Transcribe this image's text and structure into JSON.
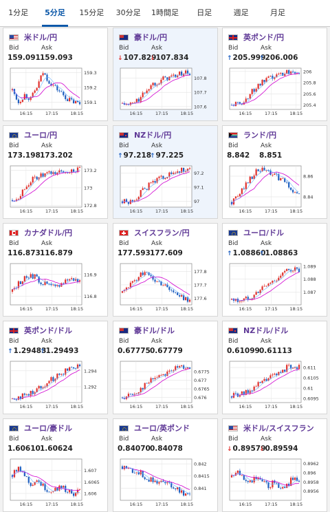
{
  "tabs": [
    "1分足",
    "5分足",
    "15分足",
    "30分足",
    "1時間足",
    "日足",
    "週足",
    "月足"
  ],
  "active_tab": 1,
  "labels": {
    "bid": "Bid",
    "ask": "Ask"
  },
  "colors": {
    "up": "#e0302c",
    "down": "#2060c0",
    "ma": "#d000d0",
    "ma2": "#6ab0ff",
    "title": "#603a97"
  },
  "pairs": [
    {
      "name": "米ドル/円",
      "flag": "us",
      "bid": "159.091",
      "ask": "159.093",
      "dir": "",
      "yticks": [
        "159.3",
        "159.2",
        "159.1"
      ],
      "xticks": [
        "16:15",
        "17:15",
        "18:15"
      ]
    },
    {
      "name": "豪ドル/円",
      "flag": "au",
      "bid": "107.829",
      "ask": "107.834",
      "dir": "down",
      "yticks": [
        "107.8",
        "107.7",
        "107.6"
      ],
      "xticks": [
        "16:15",
        "17:15",
        "18:15"
      ]
    },
    {
      "name": "英ポンド/円",
      "flag": "gb",
      "bid": "205.999",
      "ask": "206.006",
      "dir": "up",
      "yticks": [
        "206",
        "205.8",
        "205.6",
        "205.4"
      ],
      "xticks": [
        "16:15",
        "17:15",
        "18:15"
      ]
    },
    {
      "name": "ユーロ/円",
      "flag": "eu",
      "bid": "173.198",
      "ask": "173.202",
      "dir": "",
      "yticks": [
        "173.2",
        "173",
        "172.8"
      ],
      "xticks": [
        "16:15",
        "17:15",
        "18:15"
      ]
    },
    {
      "name": "NZドル/円",
      "flag": "nz",
      "bid": "97.218",
      "ask": "97.225",
      "dir": "up",
      "yticks": [
        "97.2",
        "97.1",
        "97"
      ],
      "xticks": [
        "16:15",
        "17:15",
        "18:15"
      ]
    },
    {
      "name": "ランド/円",
      "flag": "za",
      "bid": "8.842",
      "ask": "8.851",
      "dir": "",
      "yticks": [
        "8.86",
        "8.84"
      ],
      "xticks": [
        "16:15",
        "17:15",
        "18:15"
      ]
    },
    {
      "name": "カナダドル/円",
      "flag": "ca",
      "bid": "116.873",
      "ask": "116.879",
      "dir": "",
      "yticks": [
        "116.9",
        "116.8"
      ],
      "xticks": [
        "16:15",
        "17:15",
        "18:15"
      ]
    },
    {
      "name": "スイスフラン/円",
      "flag": "ch",
      "bid": "177.593",
      "ask": "177.609",
      "dir": "",
      "yticks": [
        "177.8",
        "177.7",
        "177.6"
      ],
      "xticks": [
        "16:15",
        "17:15",
        "18:15"
      ]
    },
    {
      "name": "ユーロ/ドル",
      "flag": "eu",
      "bid": "1.08860",
      "ask": "1.08863",
      "dir": "up",
      "yticks": [
        "1.089",
        "1.088",
        "1.087"
      ],
      "xticks": [
        "16:15",
        "17:15",
        "18:15"
      ]
    },
    {
      "name": "英ポンド/ドル",
      "flag": "gb",
      "bid": "1.29483",
      "ask": "1.29493",
      "dir": "up",
      "yticks": [
        "1.294",
        "1.292"
      ],
      "xticks": [
        "16:15",
        "17:15",
        "18:15"
      ]
    },
    {
      "name": "豪ドル/ドル",
      "flag": "au",
      "bid": "0.67775",
      "ask": "0.67779",
      "dir": "",
      "yticks": [
        "0.6775",
        "0.677",
        "0.6765",
        "0.676"
      ],
      "xticks": [
        "16:15",
        "17:15",
        "18:15"
      ]
    },
    {
      "name": "NZドル/ドル",
      "flag": "nz",
      "bid": "0.61099",
      "ask": "0.61113",
      "dir": "",
      "yticks": [
        "0.611",
        "0.6105",
        "0.61",
        "0.6095"
      ],
      "xticks": [
        "16:15",
        "17:15",
        "18:15"
      ]
    },
    {
      "name": "ユーロ/豪ドル",
      "flag": "eu",
      "bid": "1.60610",
      "ask": "1.60624",
      "dir": "",
      "yticks": [
        "1.607",
        "1.6065",
        "1.606"
      ],
      "xticks": [
        "16:15",
        "17:15",
        "18:15"
      ]
    },
    {
      "name": "ユーロ/英ポンド",
      "flag": "eu",
      "bid": "0.84070",
      "ask": "0.84078",
      "dir": "",
      "yticks": [
        "0.842",
        "0.8415",
        "0.841"
      ],
      "xticks": [
        "16:15",
        "17:15",
        "18:15"
      ]
    },
    {
      "name": "米ドル/スイスフラン",
      "flag": "us",
      "bid": "0.89579",
      "ask": "0.89594",
      "dir": "down",
      "yticks": [
        "0.8962",
        "0.896",
        "0.8958",
        "0.8956"
      ],
      "xticks": [
        "16:15",
        "17:15",
        "18:15"
      ]
    }
  ],
  "chart_data": [
    {
      "type": "candlestick",
      "pair": "米ドル/円",
      "trend": [
        159.18,
        159.1,
        159.15,
        159.12,
        159.2,
        159.3,
        159.24,
        159.2,
        159.16,
        159.12,
        159.1,
        159.09
      ],
      "ylim": [
        159.05,
        159.33
      ]
    },
    {
      "type": "candlestick",
      "pair": "豪ドル/円",
      "trend": [
        107.62,
        107.61,
        107.63,
        107.66,
        107.72,
        107.76,
        107.78,
        107.8,
        107.81,
        107.82,
        107.84,
        107.83
      ],
      "ylim": [
        107.58,
        107.87
      ]
    },
    {
      "type": "candlestick",
      "pair": "英ポンド/円",
      "trend": [
        205.4,
        205.42,
        205.46,
        205.6,
        205.72,
        205.8,
        205.86,
        205.9,
        205.96,
        205.99,
        206.02,
        206.0
      ],
      "ylim": [
        205.32,
        206.06
      ]
    },
    {
      "type": "candlestick",
      "pair": "ユーロ/円",
      "trend": [
        172.86,
        172.9,
        173.0,
        173.08,
        173.12,
        173.14,
        173.16,
        173.17,
        173.18,
        173.19,
        173.2,
        173.2
      ],
      "ylim": [
        172.78,
        173.25
      ]
    },
    {
      "type": "candlestick",
      "pair": "NZドル/円",
      "trend": [
        97.0,
        96.99,
        97.02,
        97.06,
        97.1,
        97.14,
        97.16,
        97.18,
        97.19,
        97.21,
        97.22,
        97.22
      ],
      "ylim": [
        96.96,
        97.25
      ]
    },
    {
      "type": "candlestick",
      "pair": "ランド/円",
      "trend": [
        8.835,
        8.84,
        8.85,
        8.858,
        8.864,
        8.866,
        8.864,
        8.86,
        8.858,
        8.852,
        8.846,
        8.842
      ],
      "ylim": [
        8.83,
        8.87
      ]
    },
    {
      "type": "candlestick",
      "pair": "カナダドル/円",
      "trend": [
        116.82,
        116.86,
        116.88,
        116.9,
        116.88,
        116.86,
        116.85,
        116.84,
        116.86,
        116.88,
        116.88,
        116.87
      ],
      "ylim": [
        116.76,
        116.95
      ]
    },
    {
      "type": "candlestick",
      "pair": "スイスフラン/円",
      "trend": [
        177.64,
        177.7,
        177.72,
        177.8,
        177.78,
        177.74,
        177.72,
        177.7,
        177.66,
        177.62,
        177.6,
        177.59
      ],
      "ylim": [
        177.55,
        177.86
      ]
    },
    {
      "type": "candlestick",
      "pair": "ユーロ/ドル",
      "trend": [
        1.0864,
        1.0863,
        1.0864,
        1.0866,
        1.0869,
        1.0873,
        1.0876,
        1.0879,
        1.0883,
        1.0886,
        1.0888,
        1.0886
      ],
      "ylim": [
        1.086,
        1.0892
      ]
    },
    {
      "type": "candlestick",
      "pair": "英ポンド/ドル",
      "trend": [
        1.2905,
        1.2907,
        1.2909,
        1.2912,
        1.2917,
        1.2922,
        1.2927,
        1.2932,
        1.2937,
        1.2942,
        1.2946,
        1.2948
      ],
      "ylim": [
        1.29,
        1.2952
      ]
    },
    {
      "type": "candlestick",
      "pair": "豪ドル/ドル",
      "trend": [
        0.676,
        0.6761,
        0.6762,
        0.6765,
        0.6768,
        0.6771,
        0.6773,
        0.6774,
        0.6776,
        0.6777,
        0.6778,
        0.6778
      ],
      "ylim": [
        0.6757,
        0.6781
      ]
    },
    {
      "type": "candlestick",
      "pair": "NZドル/ドル",
      "trend": [
        0.6096,
        0.6097,
        0.6097,
        0.6099,
        0.6101,
        0.6103,
        0.6105,
        0.6106,
        0.6108,
        0.611,
        0.6111,
        0.611
      ],
      "ylim": [
        0.6093,
        0.6113
      ]
    },
    {
      "type": "candlestick",
      "pair": "ユーロ/豪ドル",
      "trend": [
        1.6068,
        1.6072,
        1.6068,
        1.6064,
        1.6066,
        1.6063,
        1.6061,
        1.6062,
        1.6063,
        1.6061,
        1.606,
        1.6061
      ],
      "ylim": [
        1.6057,
        1.6075
      ]
    },
    {
      "type": "candlestick",
      "pair": "ユーロ/英ポンド",
      "trend": [
        0.8419,
        0.8418,
        0.8417,
        0.8416,
        0.8414,
        0.8413,
        0.8413,
        0.8412,
        0.8411,
        0.841,
        0.8408,
        0.8407
      ],
      "ylim": [
        0.8405,
        0.8422
      ]
    },
    {
      "type": "candlestick",
      "pair": "米ドル/スイスフラン",
      "trend": [
        0.8959,
        0.896,
        0.8959,
        0.8958,
        0.8959,
        0.8958,
        0.8957,
        0.8958,
        0.8957,
        0.8957,
        0.8959,
        0.8958
      ],
      "ylim": [
        0.8954,
        0.8963
      ]
    }
  ]
}
